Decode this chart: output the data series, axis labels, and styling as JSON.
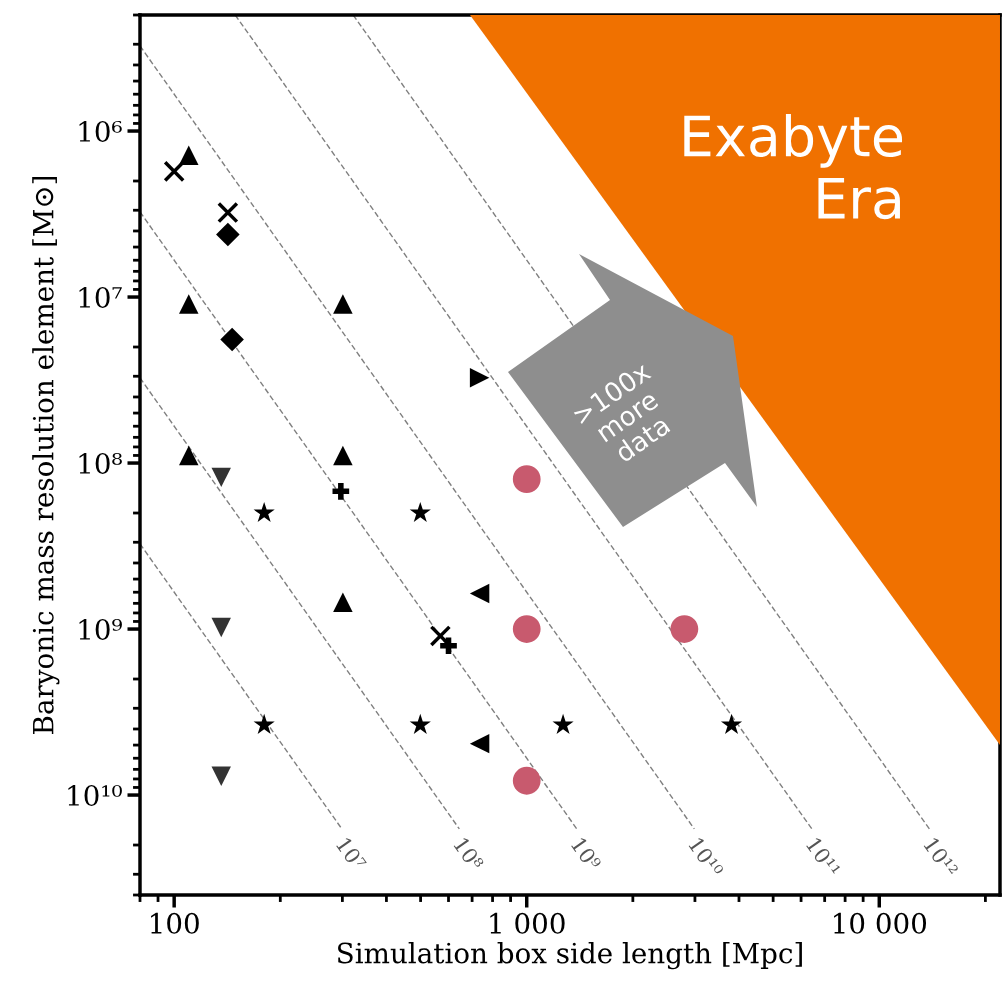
{
  "chart_data": {
    "type": "scatter",
    "xlabel": "Simulation box side length [Mpc]",
    "ylabel": "Baryonic mass resolution element [M⊙]",
    "log": "xy",
    "xlim": [
      80,
      22000
    ],
    "xticks": [
      100,
      {
        "value": 1000,
        "label": "1 000"
      },
      {
        "value": 10000,
        "label": "10 000"
      }
    ],
    "ylim": [
      40000000000.0,
      200000.0
    ],
    "yticks": [
      {
        "value": 1000000.0,
        "label": "10⁶"
      },
      {
        "value": 10000000.0,
        "label": "10⁷"
      },
      {
        "value": 100000000.0,
        "label": "10⁸"
      },
      {
        "value": 1000000000.0,
        "label": "10⁹"
      },
      {
        "value": 10000000000.0,
        "label": "10¹⁰"
      }
    ],
    "grid": false,
    "legend": false,
    "annotations": [
      "Exabyte Era",
      ">100x more data"
    ],
    "series": [
      {
        "type": "line",
        "name": "10⁷",
        "x": [
          80,
          299
        ],
        "values": [
          307000000.0,
          16000000000.0
        ],
        "color": "#7f7f7f",
        "line_style": "dashed",
        "marker": "none"
      },
      {
        "type": "line",
        "name": "10⁸",
        "x": [
          80,
          644
        ],
        "values": [
          30700000.0,
          16000000000.0
        ],
        "color": "#7f7f7f",
        "line_style": "dashed",
        "marker": "none"
      },
      {
        "type": "line",
        "name": "10⁹",
        "x": [
          80,
          1387
        ],
        "values": [
          3070000.0,
          16000000000.0
        ],
        "color": "#7f7f7f",
        "line_style": "dashed",
        "marker": "none"
      },
      {
        "type": "line",
        "name": "10¹⁰",
        "x": [
          80,
          2988
        ],
        "values": [
          307000.0,
          16000000000.0
        ],
        "color": "#7f7f7f",
        "line_style": "dashed",
        "marker": "none"
      },
      {
        "type": "line",
        "name": "10¹¹",
        "x": [
          149,
          6438
        ],
        "values": [
          200000.0,
          16000000000.0
        ],
        "color": "#7f7f7f",
        "line_style": "dashed",
        "marker": "none"
      },
      {
        "type": "line",
        "name": "10¹²",
        "x": [
          322,
          13870
        ],
        "values": [
          200000.0,
          16000000000.0
        ],
        "color": "#7f7f7f",
        "line_style": "dashed",
        "marker": "none"
      },
      {
        "marker": "cross",
        "x": [
          100
        ],
        "values": [
          1750000.0
        ],
        "color": "#000000"
      },
      {
        "marker": "triangle",
        "x": [
          110,
          110,
          301,
          110,
          301,
          301
        ],
        "values": [
          1400000.0,
          11000000.0,
          11000000.0,
          90000000.0,
          90000000.0,
          690000000.0
        ],
        "color": "#000000"
      },
      {
        "marker": "cross",
        "x": [
          142
        ],
        "values": [
          3100000.0
        ],
        "color": "#000000"
      },
      {
        "marker": "diamond",
        "x": [
          142
        ],
        "values": [
          4200000.0
        ],
        "color": "#000000"
      },
      {
        "marker": "diamond",
        "x": [
          146
        ],
        "values": [
          18000000.0
        ],
        "color": "#000000"
      },
      {
        "marker": "triangle-right",
        "x": [
          735
        ],
        "values": [
          30600000.0
        ],
        "color": "#000000"
      },
      {
        "marker": "triangle-down",
        "x": [
          136,
          136,
          136
        ],
        "values": [
          122000000.0,
          980000000.0,
          7700000000.0
        ],
        "color": "#333333"
      },
      {
        "marker": "plus",
        "x": [
          297,
          600
        ],
        "values": [
          148000000.0,
          1260000000.0
        ],
        "color": "#000000"
      },
      {
        "marker": "cross",
        "x": [
          569
        ],
        "values": [
          1100000000.0
        ],
        "color": "#000000"
      },
      {
        "marker": "star",
        "x": [
          180,
          499,
          180,
          499,
          1268,
          3810
        ],
        "values": [
          200000000.0,
          200000000.0,
          3780000000.0,
          3780000000.0,
          3780000000.0,
          3780000000.0
        ],
        "color": "#000000"
      },
      {
        "marker": "triangle-left",
        "x": [
          735,
          735
        ],
        "values": [
          610000000.0,
          4900000000.0
        ],
        "color": "#000000"
      },
      {
        "marker": "circle",
        "x": [
          1000,
          1000,
          2800,
          1000
        ],
        "values": [
          125000000.0,
          1000000000.0,
          1000000000.0,
          8200000000.0
        ],
        "color": "#c85a6e"
      }
    ]
  }
}
